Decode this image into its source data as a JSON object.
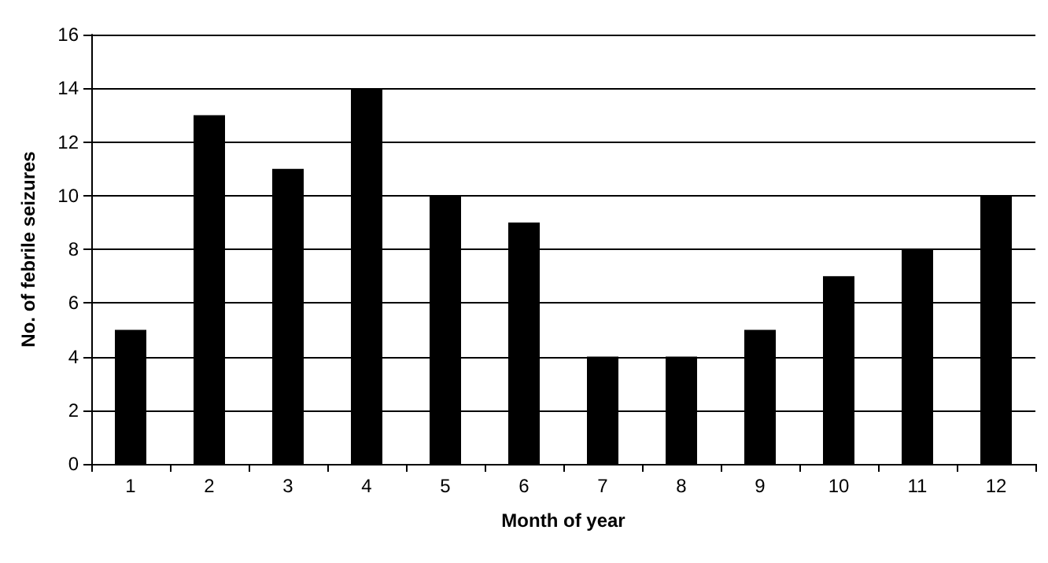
{
  "chart_data": {
    "type": "bar",
    "xlabel": "Month of year",
    "ylabel": "No. of febrile seizures",
    "categories": [
      "1",
      "2",
      "3",
      "4",
      "5",
      "6",
      "7",
      "8",
      "9",
      "10",
      "11",
      "12"
    ],
    "values": [
      5,
      13,
      11,
      14,
      10,
      9,
      4,
      4,
      5,
      7,
      8,
      10
    ],
    "color": "#000000",
    "ylim": [
      0,
      16
    ],
    "yticks": [
      0,
      2,
      4,
      6,
      8,
      10,
      12,
      14,
      16
    ],
    "grid": "y"
  }
}
